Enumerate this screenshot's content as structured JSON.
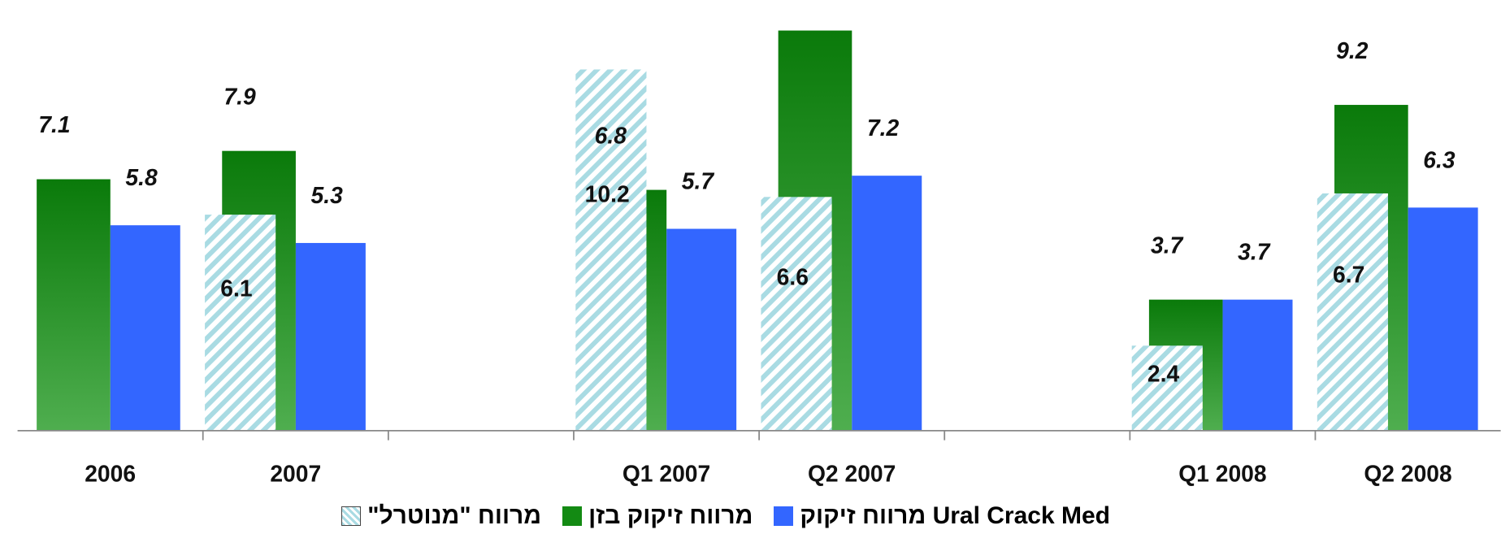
{
  "chart_data": {
    "type": "bar",
    "categories": [
      "2006",
      "2007",
      null,
      "Q1 2007",
      "Q2 2007",
      null,
      "Q1 2008",
      "Q2 2008"
    ],
    "series": [
      {
        "name": "מרווח \"מנוטרל\"",
        "color": "#a9dbe3",
        "hatched": true,
        "values": [
          null,
          6.1,
          null,
          10.2,
          6.6,
          null,
          2.4,
          6.7
        ]
      },
      {
        "name": "מרווח זיקוק בזן",
        "color": "#138a13",
        "values": [
          7.1,
          7.9,
          null,
          6.8,
          11.3,
          null,
          3.7,
          9.2
        ]
      },
      {
        "name": "Ural Crack Med מרווח זיקוק",
        "color": "#3366ff",
        "values": [
          5.8,
          5.3,
          null,
          5.7,
          7.2,
          null,
          3.7,
          6.3
        ]
      }
    ],
    "ylim": [
      0,
      12
    ]
  }
}
